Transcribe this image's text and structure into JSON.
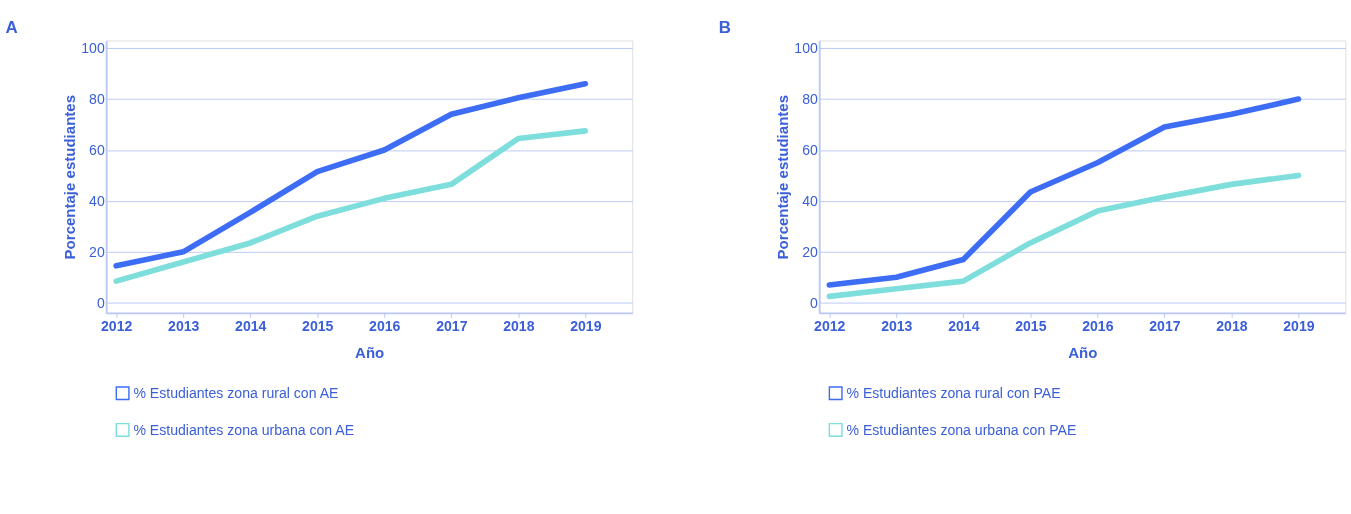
{
  "chart_data": [
    {
      "type": "line",
      "title": "A",
      "xlabel": "Año",
      "ylabel": "Porcentaje estudiantes",
      "x": [
        2012,
        2013,
        2014,
        2015,
        2016,
        2017,
        2018,
        2019
      ],
      "xlim": [
        2011.85,
        2019.7
      ],
      "xticks": [
        2012,
        2013,
        2014,
        2015,
        2016,
        2017,
        2018,
        2019
      ],
      "ylim": [
        -4,
        103
      ],
      "yticks": [
        0,
        20,
        40,
        60,
        80,
        100
      ],
      "grid": "y",
      "legend": "bottom",
      "series": [
        {
          "name": "% Estudiantes zona rural con AE",
          "color": "#3d6cf5",
          "values": [
            14.5,
            20,
            35.5,
            51.5,
            60,
            74,
            80.5,
            86
          ]
        },
        {
          "name": "% Estudiantes zona urbana con AE",
          "color": "#7ddedb",
          "values": [
            8.5,
            16,
            23.5,
            34,
            41,
            46.5,
            64.5,
            67.5
          ]
        }
      ]
    },
    {
      "type": "line",
      "title": "B",
      "xlabel": "Año",
      "ylabel": "Porcentaje estudiantes",
      "x": [
        2012,
        2013,
        2014,
        2015,
        2016,
        2017,
        2018,
        2019
      ],
      "xlim": [
        2011.85,
        2019.7
      ],
      "xticks": [
        2012,
        2013,
        2014,
        2015,
        2016,
        2017,
        2018,
        2019
      ],
      "ylim": [
        -4,
        103
      ],
      "yticks": [
        0,
        20,
        40,
        60,
        80,
        100
      ],
      "grid": "y",
      "legend": "bottom",
      "series": [
        {
          "name": "% Estudiantes zona rural con PAE",
          "color": "#3d6cf5",
          "values": [
            7,
            10,
            17,
            43.5,
            55,
            69,
            74,
            80
          ]
        },
        {
          "name": "% Estudiantes zona urbana con PAE",
          "color": "#7ddedb",
          "values": [
            2.5,
            5.5,
            8.5,
            23.5,
            36,
            41.5,
            46.5,
            50
          ]
        }
      ]
    }
  ]
}
